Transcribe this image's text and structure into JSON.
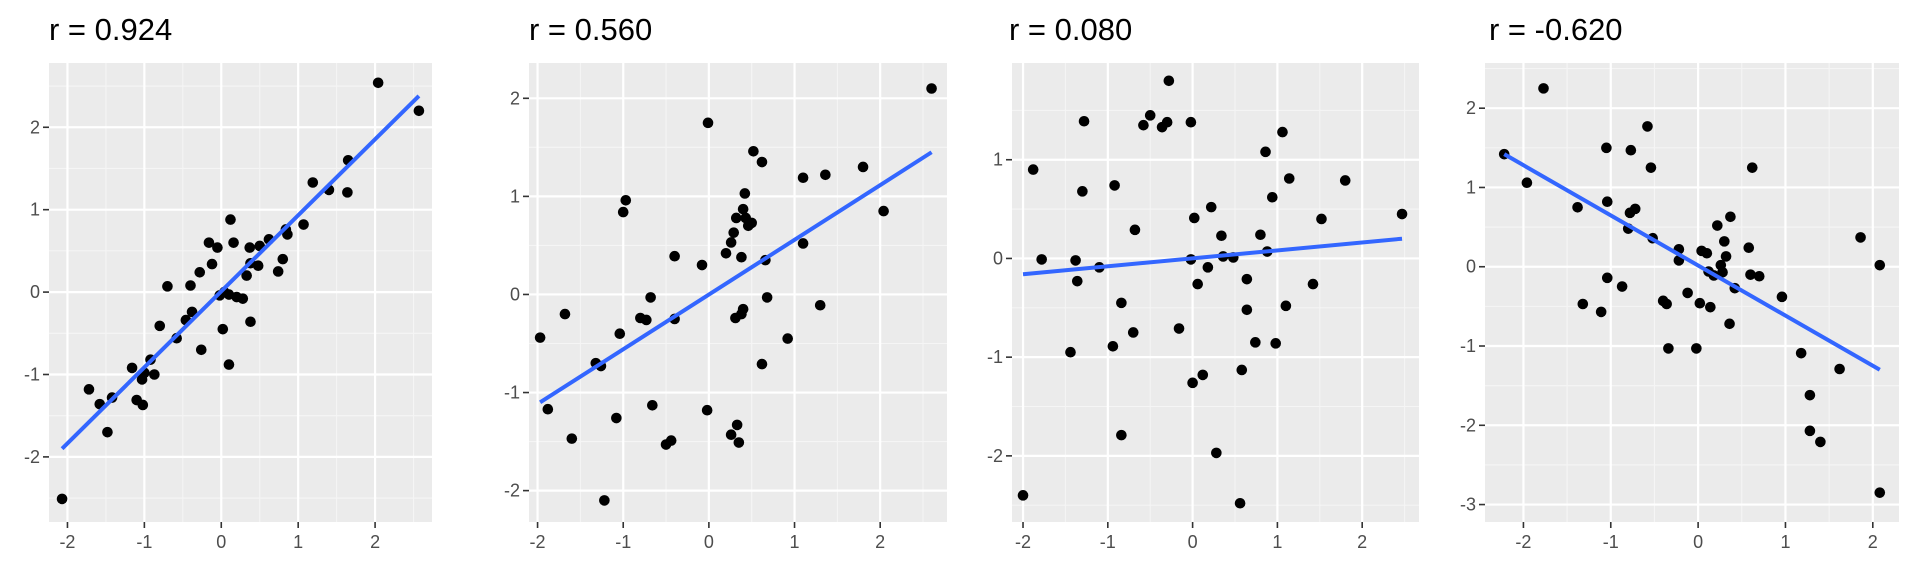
{
  "chart_data": [
    {
      "type": "scatter",
      "title": "r = 0.924",
      "xlim": [
        -2.24,
        2.74
      ],
      "ylim": [
        -2.79,
        2.78
      ],
      "x_ticks": [
        -2,
        -1,
        0,
        1,
        2
      ],
      "x_tick_labels": [
        "-2",
        "-1",
        "0",
        "1",
        "2"
      ],
      "y_ticks": [
        -2,
        -1,
        0,
        1,
        2
      ],
      "y_tick_labels": [
        "-2",
        "-1",
        "0",
        "1",
        "2"
      ],
      "grid": true,
      "points": [
        [
          -2.07,
          -2.51
        ],
        [
          -1.72,
          -1.18
        ],
        [
          -1.58,
          -1.36
        ],
        [
          -1.48,
          -1.7
        ],
        [
          -1.42,
          -1.28
        ],
        [
          -1.16,
          -0.92
        ],
        [
          -1.1,
          -1.31
        ],
        [
          -1.03,
          -1.06
        ],
        [
          -1.0,
          -0.98
        ],
        [
          -1.02,
          -1.37
        ],
        [
          -0.92,
          -0.82
        ],
        [
          -0.87,
          -1.0
        ],
        [
          -0.8,
          -0.41
        ],
        [
          -0.7,
          0.07
        ],
        [
          -0.58,
          -0.56
        ],
        [
          -0.46,
          -0.34
        ],
        [
          -0.4,
          0.08
        ],
        [
          -0.38,
          -0.24
        ],
        [
          -0.28,
          0.24
        ],
        [
          -0.26,
          -0.7
        ],
        [
          -0.16,
          0.6
        ],
        [
          -0.12,
          0.34
        ],
        [
          -0.05,
          0.54
        ],
        [
          -0.02,
          -0.04
        ],
        [
          0.02,
          -0.45
        ],
        [
          0.04,
          0.0
        ],
        [
          0.1,
          -0.03
        ],
        [
          0.12,
          0.88
        ],
        [
          0.1,
          -0.88
        ],
        [
          0.16,
          0.6
        ],
        [
          0.2,
          -0.06
        ],
        [
          0.28,
          -0.08
        ],
        [
          0.33,
          0.2
        ],
        [
          0.37,
          0.54
        ],
        [
          0.38,
          0.35
        ],
        [
          0.38,
          -0.36
        ],
        [
          0.48,
          0.32
        ],
        [
          0.5,
          0.56
        ],
        [
          0.62,
          0.64
        ],
        [
          0.74,
          0.25
        ],
        [
          0.8,
          0.4
        ],
        [
          0.84,
          0.76
        ],
        [
          0.86,
          0.7
        ],
        [
          1.07,
          0.82
        ],
        [
          1.19,
          1.33
        ],
        [
          1.4,
          1.24
        ],
        [
          1.64,
          1.21
        ],
        [
          1.65,
          1.6
        ],
        [
          2.04,
          2.54
        ],
        [
          2.57,
          2.2
        ]
      ],
      "trend": {
        "x": [
          -2.07,
          2.57
        ],
        "y": [
          -1.9,
          2.38
        ]
      }
    },
    {
      "type": "scatter",
      "title": "r = 0.560",
      "xlim": [
        -2.1,
        2.78
      ],
      "ylim": [
        -2.32,
        2.36
      ],
      "x_ticks": [
        -2,
        -1,
        0,
        1,
        2
      ],
      "x_tick_labels": [
        "-2",
        "-1",
        "0",
        "1",
        "2"
      ],
      "y_ticks": [
        -2,
        -1,
        0,
        1,
        2
      ],
      "y_tick_labels": [
        "-2",
        "-1",
        "0",
        "1",
        "2"
      ],
      "grid": true,
      "points": [
        [
          -1.97,
          -0.44
        ],
        [
          -1.88,
          -1.17
        ],
        [
          -1.68,
          -0.2
        ],
        [
          -1.6,
          -1.47
        ],
        [
          -1.32,
          -0.7
        ],
        [
          -1.26,
          -0.73
        ],
        [
          -1.22,
          -2.1
        ],
        [
          -1.08,
          -1.26
        ],
        [
          -1.04,
          -0.4
        ],
        [
          -1.0,
          0.84
        ],
        [
          -0.97,
          0.96
        ],
        [
          -0.8,
          -0.24
        ],
        [
          -0.73,
          -0.26
        ],
        [
          -0.68,
          -0.03
        ],
        [
          -0.66,
          -1.13
        ],
        [
          -0.5,
          -1.53
        ],
        [
          -0.44,
          -1.49
        ],
        [
          -0.4,
          -0.25
        ],
        [
          -0.4,
          0.39
        ],
        [
          -0.08,
          0.3
        ],
        [
          -0.02,
          -1.18
        ],
        [
          -0.01,
          1.75
        ],
        [
          0.2,
          0.42
        ],
        [
          0.26,
          -1.43
        ],
        [
          0.26,
          0.53
        ],
        [
          0.29,
          0.63
        ],
        [
          0.31,
          -0.24
        ],
        [
          0.32,
          0.78
        ],
        [
          0.33,
          -1.33
        ],
        [
          0.35,
          -1.51
        ],
        [
          0.38,
          -0.2
        ],
        [
          0.38,
          0.38
        ],
        [
          0.4,
          -0.15
        ],
        [
          0.4,
          0.87
        ],
        [
          0.42,
          1.03
        ],
        [
          0.43,
          0.78
        ],
        [
          0.46,
          0.7
        ],
        [
          0.5,
          0.73
        ],
        [
          0.52,
          1.46
        ],
        [
          0.62,
          1.35
        ],
        [
          0.62,
          -0.71
        ],
        [
          0.66,
          0.35
        ],
        [
          0.68,
          -0.03
        ],
        [
          0.92,
          -0.45
        ],
        [
          1.1,
          1.19
        ],
        [
          1.1,
          0.52
        ],
        [
          1.3,
          -0.11
        ],
        [
          1.36,
          1.22
        ],
        [
          1.8,
          1.3
        ],
        [
          2.04,
          0.85
        ],
        [
          2.6,
          2.1
        ]
      ],
      "trend": {
        "x": [
          -1.97,
          2.6
        ],
        "y": [
          -1.1,
          1.45
        ]
      }
    },
    {
      "type": "scatter",
      "title": "r = 0.080",
      "xlim": [
        -2.13,
        2.67
      ],
      "ylim": [
        -2.67,
        1.98
      ],
      "x_ticks": [
        -2,
        -1,
        0,
        1,
        2
      ],
      "x_tick_labels": [
        "-2",
        "-1",
        "0",
        "1",
        "2"
      ],
      "y_ticks": [
        -2,
        -1,
        0,
        1
      ],
      "y_tick_labels": [
        "-2",
        "-1",
        "0",
        "1"
      ],
      "grid": true,
      "points": [
        [
          -2.0,
          -2.4
        ],
        [
          -1.88,
          0.9
        ],
        [
          -1.78,
          -0.01
        ],
        [
          -1.44,
          -0.95
        ],
        [
          -1.38,
          -0.02
        ],
        [
          -1.36,
          -0.23
        ],
        [
          -1.3,
          0.68
        ],
        [
          -1.28,
          1.39
        ],
        [
          -1.1,
          -0.09
        ],
        [
          -0.94,
          -0.89
        ],
        [
          -0.92,
          0.74
        ],
        [
          -0.84,
          -0.45
        ],
        [
          -0.84,
          -1.79
        ],
        [
          -0.7,
          -0.75
        ],
        [
          -0.68,
          0.29
        ],
        [
          -0.58,
          1.35
        ],
        [
          -0.5,
          1.45
        ],
        [
          -0.36,
          1.33
        ],
        [
          -0.28,
          1.8
        ],
        [
          -0.3,
          1.38
        ],
        [
          -0.16,
          -0.71
        ],
        [
          -0.02,
          -0.01
        ],
        [
          -0.02,
          1.38
        ],
        [
          0.0,
          -1.26
        ],
        [
          0.02,
          0.41
        ],
        [
          0.06,
          -0.26
        ],
        [
          0.12,
          -1.18
        ],
        [
          0.18,
          -0.09
        ],
        [
          0.22,
          0.52
        ],
        [
          0.28,
          -1.97
        ],
        [
          0.34,
          0.23
        ],
        [
          0.36,
          0.02
        ],
        [
          0.48,
          0.01
        ],
        [
          0.56,
          -2.48
        ],
        [
          0.58,
          -1.13
        ],
        [
          0.64,
          -0.21
        ],
        [
          0.64,
          -0.52
        ],
        [
          0.74,
          -0.85
        ],
        [
          0.8,
          0.24
        ],
        [
          0.86,
          1.08
        ],
        [
          0.88,
          0.07
        ],
        [
          0.94,
          0.62
        ],
        [
          0.98,
          -0.86
        ],
        [
          1.06,
          1.28
        ],
        [
          1.1,
          -0.48
        ],
        [
          1.14,
          0.81
        ],
        [
          1.42,
          -0.26
        ],
        [
          1.52,
          0.4
        ],
        [
          1.8,
          0.79
        ],
        [
          2.47,
          0.45
        ]
      ],
      "trend": {
        "x": [
          -2.0,
          2.47
        ],
        "y": [
          -0.16,
          0.2
        ]
      }
    },
    {
      "type": "scatter",
      "title": "r = -0.620",
      "xlim": [
        -2.44,
        2.3
      ],
      "ylim": [
        -3.22,
        2.57
      ],
      "x_ticks": [
        -2,
        -1,
        0,
        1,
        2
      ],
      "x_tick_labels": [
        "-2",
        "-1",
        "0",
        "1",
        "2"
      ],
      "y_ticks": [
        -3,
        -2,
        -1,
        0,
        1,
        2
      ],
      "y_tick_labels": [
        "-3",
        "-2",
        "-1",
        "0",
        "1",
        "2"
      ],
      "grid": true,
      "points": [
        [
          -2.22,
          1.42
        ],
        [
          -1.96,
          1.06
        ],
        [
          -1.77,
          2.25
        ],
        [
          -1.38,
          0.75
        ],
        [
          -1.32,
          -0.47
        ],
        [
          -1.11,
          -0.57
        ],
        [
          -1.05,
          1.5
        ],
        [
          -1.04,
          0.82
        ],
        [
          -1.04,
          -0.14
        ],
        [
          -0.87,
          -0.25
        ],
        [
          -0.8,
          0.48
        ],
        [
          -0.78,
          0.68
        ],
        [
          -0.77,
          1.47
        ],
        [
          -0.72,
          0.73
        ],
        [
          -0.58,
          1.77
        ],
        [
          -0.54,
          1.25
        ],
        [
          -0.52,
          0.36
        ],
        [
          -0.4,
          -0.43
        ],
        [
          -0.36,
          -0.47
        ],
        [
          -0.34,
          -1.03
        ],
        [
          -0.22,
          0.22
        ],
        [
          -0.22,
          0.08
        ],
        [
          -0.12,
          -0.33
        ],
        [
          -0.02,
          -1.03
        ],
        [
          0.02,
          -0.46
        ],
        [
          0.04,
          0.2
        ],
        [
          0.1,
          0.17
        ],
        [
          0.12,
          -0.06
        ],
        [
          0.14,
          -0.51
        ],
        [
          0.18,
          -0.11
        ],
        [
          0.22,
          0.52
        ],
        [
          0.26,
          0.02
        ],
        [
          0.28,
          -0.07
        ],
        [
          0.3,
          0.32
        ],
        [
          0.32,
          0.13
        ],
        [
          0.36,
          -0.72
        ],
        [
          0.37,
          0.63
        ],
        [
          0.42,
          -0.27
        ],
        [
          0.58,
          0.24
        ],
        [
          0.6,
          -0.1
        ],
        [
          0.62,
          1.25
        ],
        [
          0.7,
          -0.12
        ],
        [
          0.96,
          -0.38
        ],
        [
          1.18,
          -1.09
        ],
        [
          1.28,
          -1.62
        ],
        [
          1.28,
          -2.07
        ],
        [
          1.4,
          -2.21
        ],
        [
          1.62,
          -1.29
        ],
        [
          1.86,
          0.37
        ],
        [
          2.08,
          0.02
        ],
        [
          2.08,
          -2.85
        ]
      ],
      "trend": {
        "x": [
          -2.22,
          2.08
        ],
        "y": [
          1.42,
          -1.3
        ]
      }
    }
  ]
}
